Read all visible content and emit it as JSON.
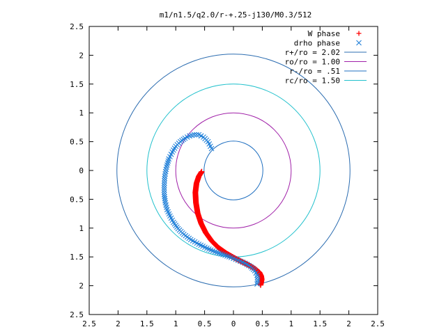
{
  "chart_data": {
    "type": "scatter",
    "title": "m1/n1.5/q2.0/r-+.25-j130/M0.3/512",
    "xlabel": "",
    "ylabel": "",
    "xlim": [
      -2.5,
      2.5
    ],
    "ylim": [
      -2.5,
      2.5
    ],
    "x_ticks": [
      "2.5",
      "2",
      "1.5",
      "1",
      "0.5",
      "0",
      "0.5",
      "1",
      "1.5",
      "2",
      "2.5"
    ],
    "y_ticks": [
      "2.5",
      "2",
      "1.5",
      "1",
      "0.5",
      "0",
      "0.5",
      "1",
      "1.5",
      "2",
      "2.5"
    ],
    "grid": false,
    "legend_position": "top-right",
    "series": [
      {
        "name": "W phase",
        "marker": "plus",
        "color": "#ff0000",
        "x": [
          -0.55,
          -0.6,
          -0.64,
          -0.66,
          -0.65,
          -0.62,
          -0.56,
          -0.48,
          -0.38,
          -0.26,
          -0.12,
          0.02,
          0.16,
          0.28,
          0.38,
          0.45,
          0.48,
          0.49,
          0.48,
          0.47
        ],
        "y": [
          -0.02,
          -0.1,
          -0.22,
          -0.38,
          -0.56,
          -0.74,
          -0.92,
          -1.08,
          -1.22,
          -1.34,
          -1.44,
          -1.52,
          -1.59,
          -1.65,
          -1.71,
          -1.77,
          -1.83,
          -1.89,
          -1.94,
          -1.99
        ]
      },
      {
        "name": "drho phase",
        "marker": "cross",
        "color": "#1f7fd8",
        "x": [
          -0.38,
          -0.44,
          -0.52,
          -0.6,
          -0.68,
          -0.76,
          -0.84,
          -0.92,
          -1.0,
          -1.06,
          -1.12,
          -1.16,
          -1.19,
          -1.2,
          -1.2,
          -1.18,
          -1.15,
          -1.1,
          -1.04,
          -0.96,
          -0.86,
          -0.74,
          -0.6,
          -0.46,
          -0.32,
          -0.18,
          -0.04,
          0.08,
          0.2,
          0.3,
          0.37,
          0.41,
          0.42,
          0.41
        ],
        "y": [
          0.38,
          0.5,
          0.58,
          0.62,
          0.62,
          0.6,
          0.56,
          0.5,
          0.42,
          0.32,
          0.2,
          0.06,
          -0.1,
          -0.26,
          -0.42,
          -0.56,
          -0.68,
          -0.79,
          -0.9,
          -1.01,
          -1.11,
          -1.2,
          -1.28,
          -1.35,
          -1.41,
          -1.46,
          -1.51,
          -1.56,
          -1.61,
          -1.67,
          -1.74,
          -1.82,
          -1.9,
          -1.97
        ]
      }
    ],
    "circles": [
      {
        "name": "r+/ro = 2.02",
        "radius": 2.02,
        "color": "#2b6cb0"
      },
      {
        "name": "ro/ro = 1.00",
        "radius": 1.0,
        "color": "#a020a8"
      },
      {
        "name": "r-/ro = .51",
        "radius": 0.51,
        "color": "#1f6fc0"
      },
      {
        "name": "rc/ro = 1.50",
        "radius": 1.5,
        "color": "#20c0cc"
      }
    ]
  }
}
